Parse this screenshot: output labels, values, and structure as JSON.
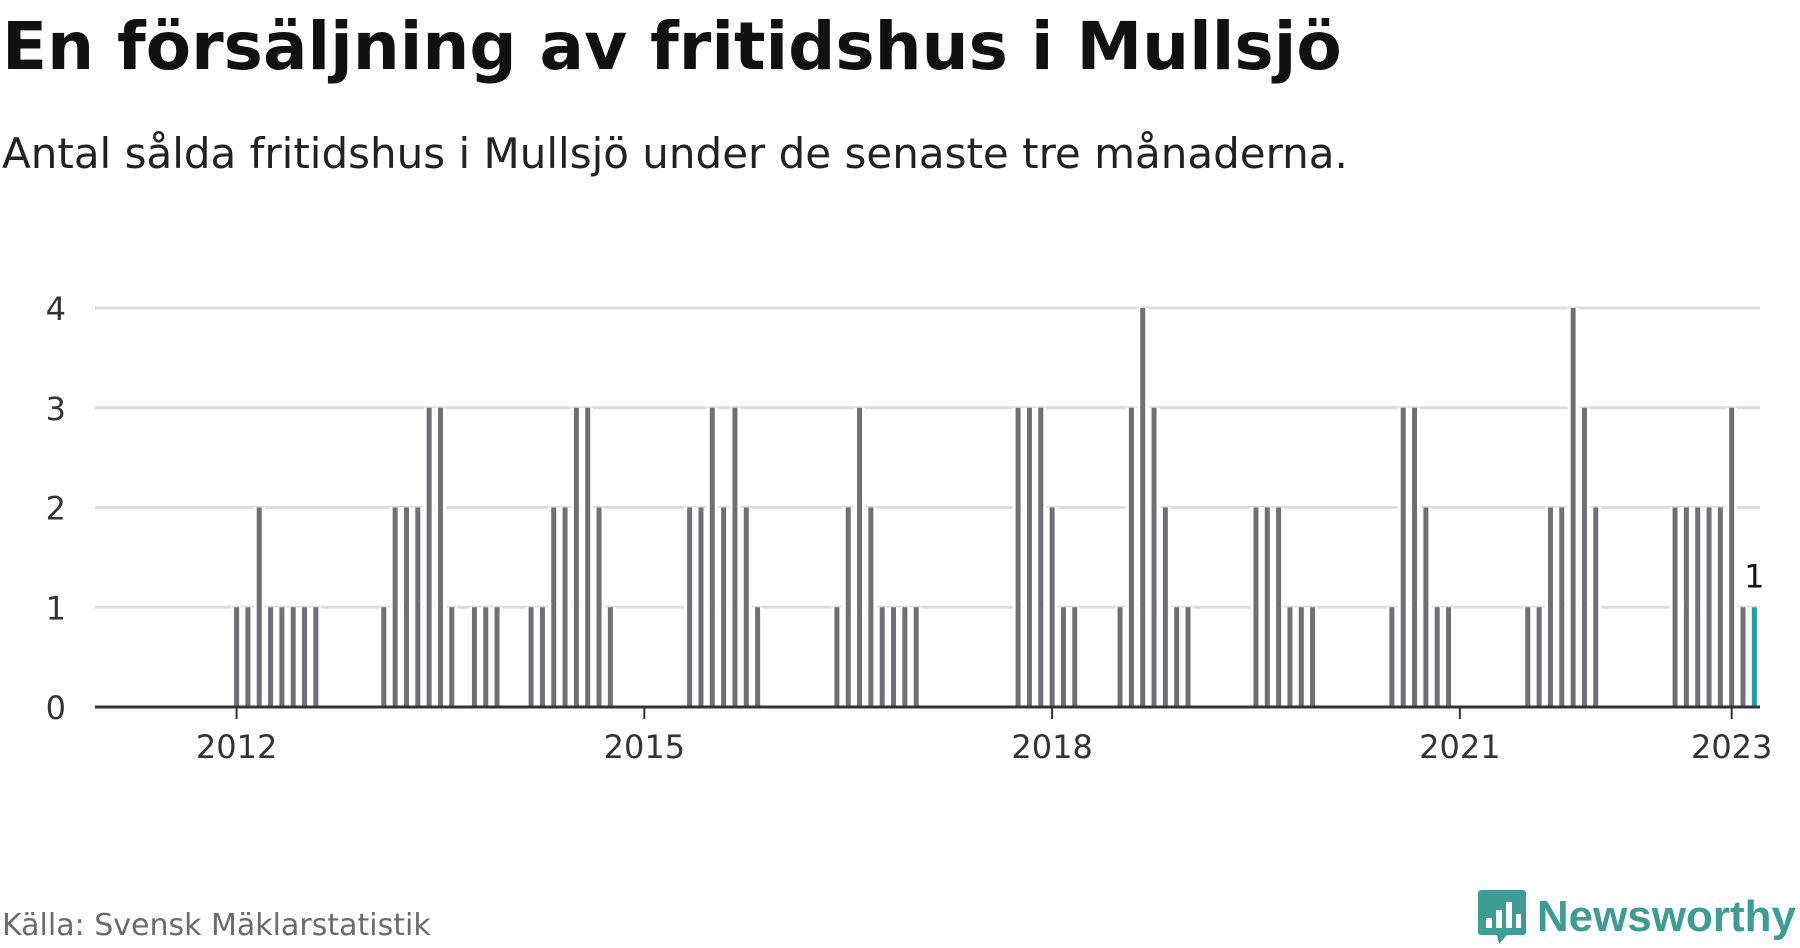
{
  "header": {
    "title": "En försäljning av fritidshus i Mullsjö",
    "subtitle": "Antal sålda fritidshus i Mullsjö under de senaste tre månaderna."
  },
  "footer": {
    "source": "Källa: Svensk Mäklarstatistik",
    "brand": "Newsworthy"
  },
  "colors": {
    "bar": "#707074",
    "highlight": "#1aa39a",
    "grid": "#dcdcdc",
    "axis": "#333333",
    "brand": "#3d9d95"
  },
  "chart_data": {
    "type": "bar",
    "x_unit": "month",
    "x_start": "2011-01",
    "x_end": "2023-03",
    "x_ticks": [
      {
        "date": "2012-01",
        "label": "2012"
      },
      {
        "date": "2015-01",
        "label": "2015"
      },
      {
        "date": "2018-01",
        "label": "2018"
      },
      {
        "date": "2021-01",
        "label": "2021"
      },
      {
        "date": "2023-01",
        "label": "2023"
      }
    ],
    "y_ticks": [
      0,
      1,
      2,
      3,
      4
    ],
    "ylim": [
      0,
      4
    ],
    "grid": true,
    "highlight_label": "1",
    "series": [
      {
        "dates": [
          "2012-01",
          "2012-02",
          "2012-03",
          "2012-04",
          "2012-05",
          "2012-06",
          "2012-07",
          "2012-08",
          "2013-02",
          "2013-03",
          "2013-04",
          "2013-05",
          "2013-06",
          "2013-07",
          "2013-08",
          "2013-10",
          "2013-11",
          "2013-12",
          "2014-03",
          "2014-04",
          "2014-05",
          "2014-06",
          "2014-07",
          "2014-08",
          "2014-09",
          "2014-10",
          "2015-05",
          "2015-06",
          "2015-07",
          "2015-08",
          "2015-09",
          "2015-10",
          "2015-11",
          "2016-06",
          "2016-07",
          "2016-08",
          "2016-09",
          "2016-10",
          "2016-11",
          "2016-12",
          "2017-01",
          "2017-10",
          "2017-11",
          "2017-12",
          "2018-01",
          "2018-02",
          "2018-03",
          "2018-07",
          "2018-08",
          "2018-09",
          "2018-10",
          "2018-11",
          "2018-12",
          "2019-01",
          "2019-07",
          "2019-08",
          "2019-09",
          "2019-10",
          "2019-11",
          "2019-12",
          "2020-07",
          "2020-08",
          "2020-09",
          "2020-10",
          "2020-11",
          "2020-12",
          "2021-07",
          "2021-08",
          "2021-09",
          "2021-10",
          "2021-11",
          "2021-12",
          "2022-01",
          "2022-08",
          "2022-09",
          "2022-10",
          "2022-11",
          "2022-12",
          "2023-01",
          "2023-02",
          "2023-03"
        ],
        "values": [
          1,
          1,
          2,
          1,
          1,
          1,
          1,
          1,
          1,
          2,
          2,
          2,
          3,
          3,
          1,
          1,
          1,
          1,
          1,
          1,
          2,
          2,
          3,
          3,
          2,
          1,
          2,
          2,
          3,
          2,
          3,
          2,
          1,
          1,
          2,
          3,
          2,
          1,
          1,
          1,
          1,
          3,
          3,
          3,
          2,
          1,
          1,
          1,
          3,
          4,
          3,
          2,
          1,
          1,
          2,
          2,
          2,
          1,
          1,
          1,
          1,
          3,
          3,
          2,
          1,
          1,
          1,
          1,
          2,
          2,
          4,
          3,
          2,
          2,
          2,
          2,
          2,
          2,
          3,
          1,
          1
        ]
      }
    ]
  }
}
